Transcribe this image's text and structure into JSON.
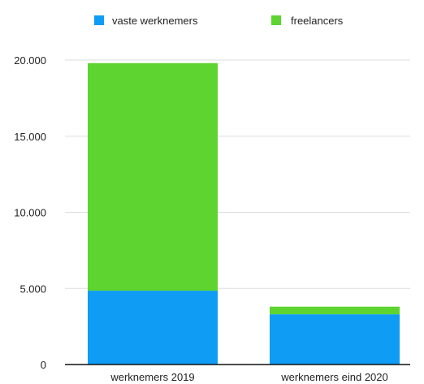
{
  "chart_data": {
    "type": "bar",
    "stacked": true,
    "title": "",
    "xlabel": "",
    "ylabel": "",
    "categories": [
      "werknemers 2019",
      "werknemers eind 2020"
    ],
    "series": [
      {
        "name": "vaste werknemers",
        "color": "#0f9cf5",
        "values": [
          4850,
          3300
        ]
      },
      {
        "name": "freelancers",
        "color": "#5dd42f",
        "values": [
          14950,
          500
        ]
      }
    ],
    "ylim": [
      0,
      20000
    ],
    "yticks": [
      0,
      5000,
      10000,
      15000,
      20000
    ],
    "ytick_labels": [
      "0",
      "5.000",
      "10.000",
      "15.000",
      "20.000"
    ],
    "grid": true,
    "legend": "top"
  }
}
